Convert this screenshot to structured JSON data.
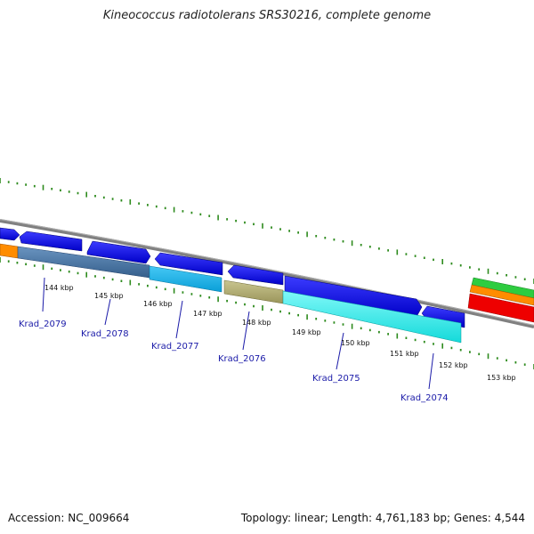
{
  "title": "Kineococcus radiotolerans SRS30216, complete genome",
  "footer": {
    "accession": "Accession: NC_009664",
    "topology": "Topology: linear; Length: 4,761,183 bp; Genes: 4,544"
  },
  "kbp_labels": [
    "144 kbp",
    "145 kbp",
    "146 kbp",
    "147 kbp",
    "148 kbp",
    "149 kbp",
    "150 kbp",
    "151 kbp",
    "152 kbp",
    "153 kbp"
  ],
  "gene_labels": [
    "Krad_2079",
    "Krad_2078",
    "Krad_2077",
    "Krad_2076",
    "Krad_2075",
    "Krad_2074"
  ],
  "colors": {
    "backbone": "#808080",
    "forward_gene": "#0000e6",
    "tick": "#2e8b1e",
    "label": "#1a1aa8",
    "cds_steelblue": "#4f7fb0",
    "cds_cyan": "#1ab4ec",
    "cds_olive": "#b5b070",
    "cds_lightcyan": "#33f0f0",
    "orange": "#ff8c00",
    "green": "#2ecc40",
    "red": "#ee0000"
  }
}
